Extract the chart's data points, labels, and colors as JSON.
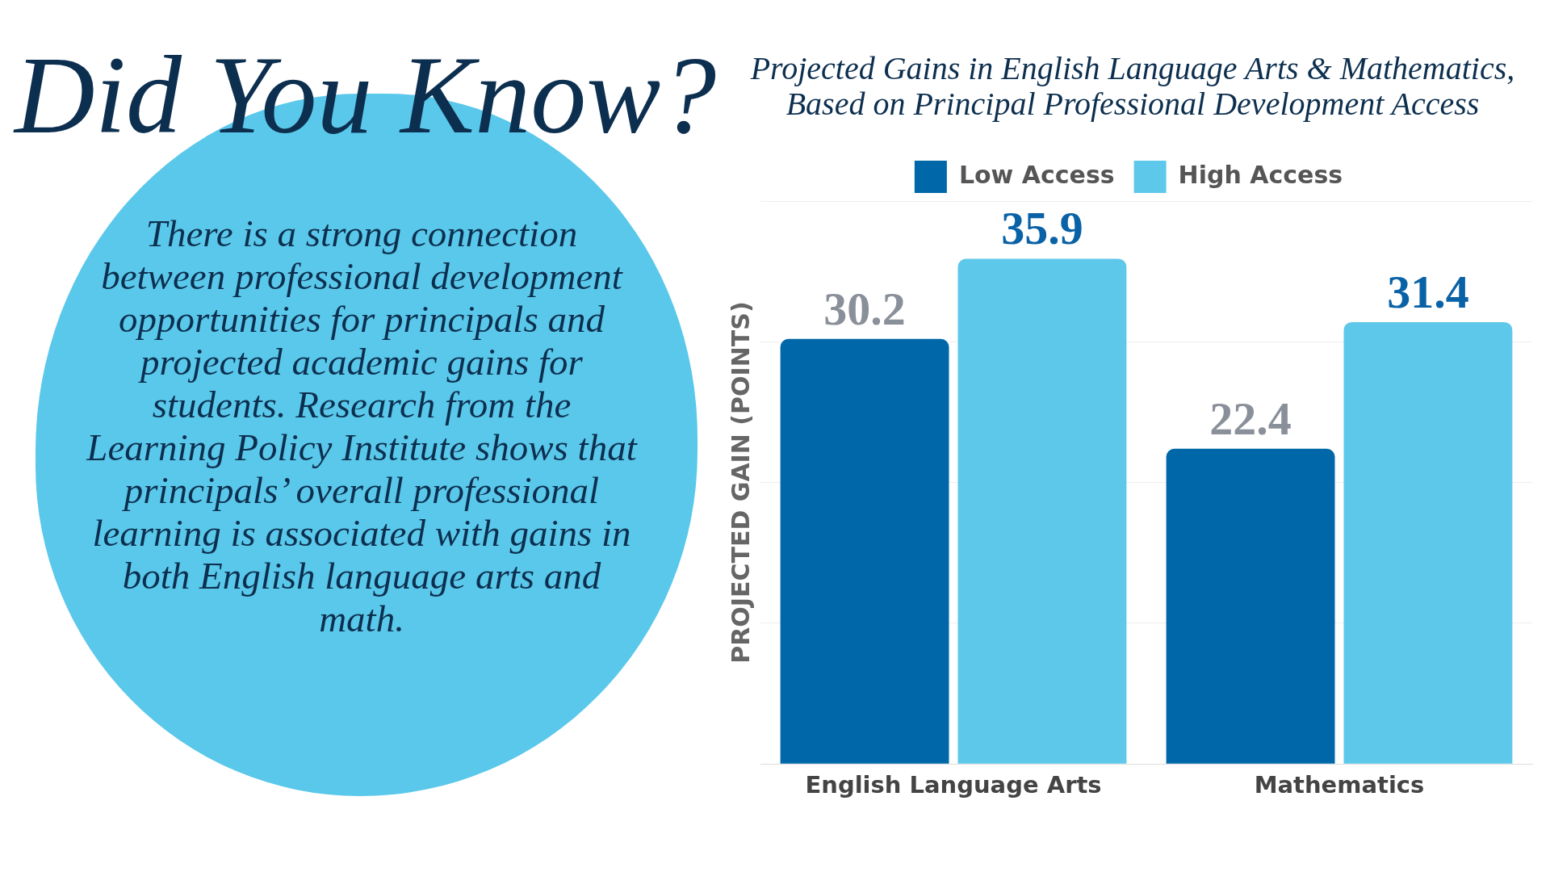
{
  "chart_data": [
    {
      "type": "other",
      "title": "Did You Know?",
      "annotations": [
        "There is a strong connection between professional development opportunities for principals and projected academic gains for students. Research from the Learning Policy Institute shows that principals’ overall professional learning is associated with gains in both English language arts and math."
      ]
    },
    {
      "type": "bar",
      "title": "Projected Gains in English Language Arts & Mathematics, Based on Principal Professional Development Access",
      "ylabel": "PROJECTED GAIN (POINTS)",
      "categories": [
        "English Language Arts",
        "Mathematics"
      ],
      "series": [
        {
          "name": "Low Access",
          "color": "#0068a8",
          "values": [
            30.2,
            22.4
          ]
        },
        {
          "name": "High Access",
          "color": "#5ec8ea",
          "values": [
            35.9,
            31.4
          ]
        }
      ],
      "ylim": [
        0,
        40
      ],
      "yticks": [
        {
          "value": 0,
          "label": null
        },
        {
          "value": 10,
          "label": null
        },
        {
          "value": 20,
          "label": null
        },
        {
          "value": 30,
          "label": null
        },
        {
          "value": 40,
          "label": null
        }
      ],
      "tick_labels": "x",
      "grid": "y",
      "legend": "top",
      "data_labels": true
    }
  ]
}
